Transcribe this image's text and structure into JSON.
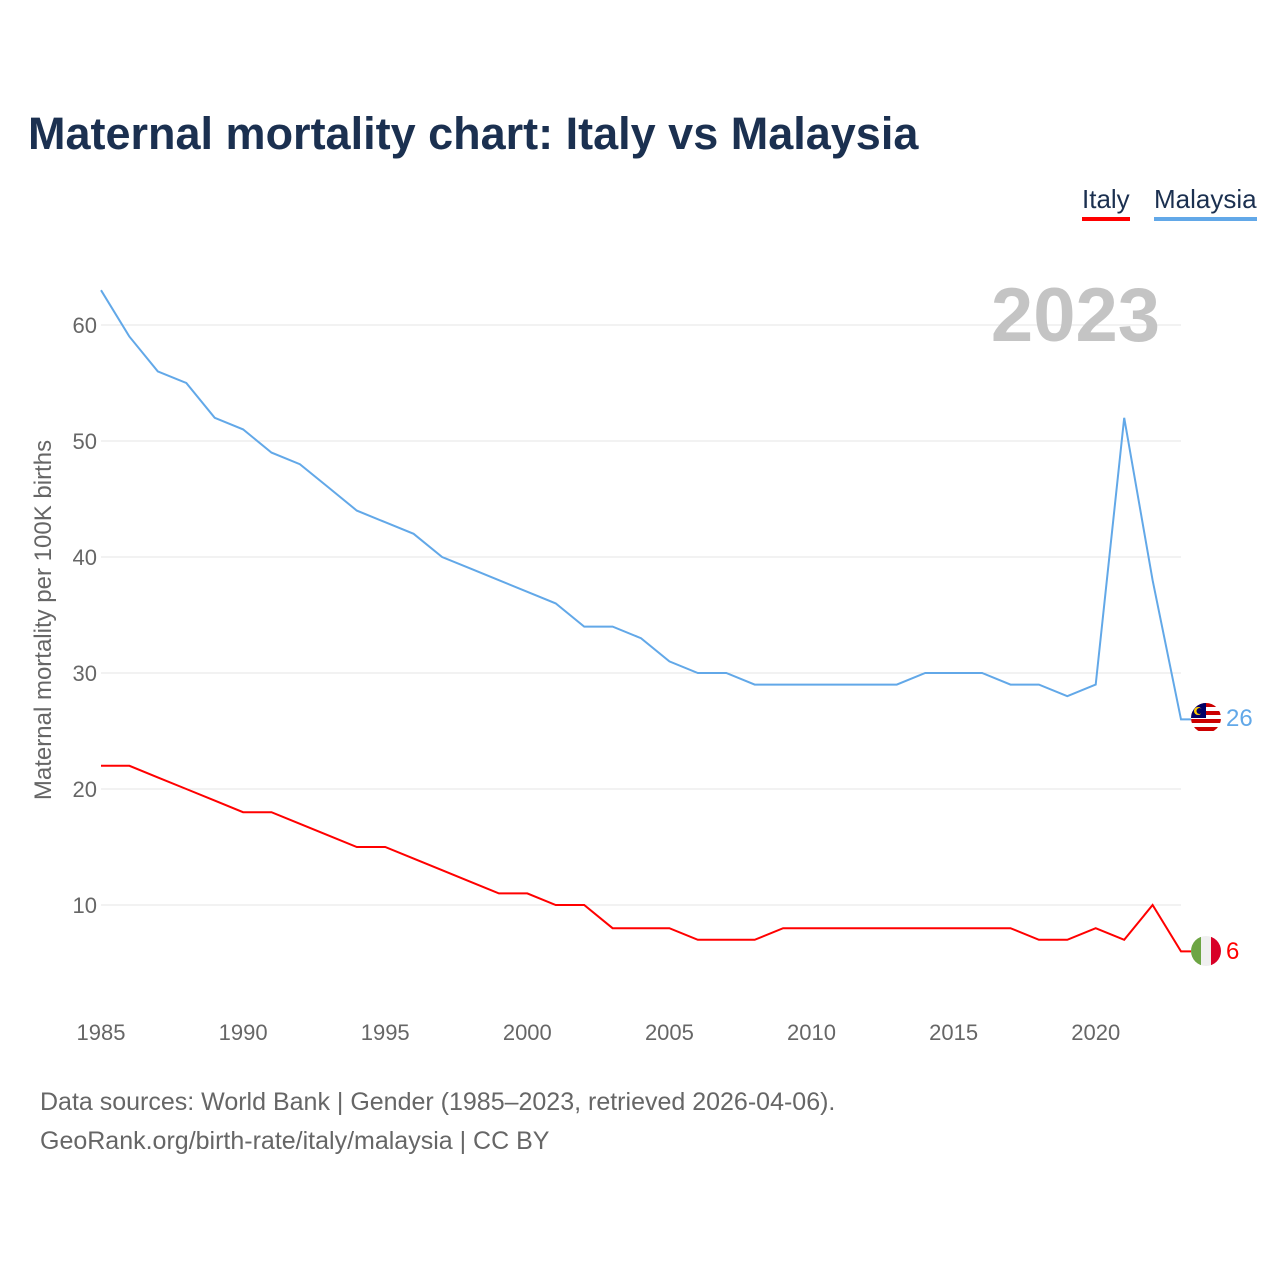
{
  "title": "Maternal mortality chart: Italy vs Malaysia",
  "legend": [
    {
      "label": "Italy",
      "color": "#ff0000"
    },
    {
      "label": "Malaysia",
      "color": "#62a8e8"
    }
  ],
  "year_label": "2023",
  "sources": {
    "line1": "Data sources: World Bank | Gender (1985–2023, retrieved 2026-04-06).",
    "line2": "GeoRank.org/birth-rate/italy/malaysia | CC BY"
  },
  "chart_data": {
    "type": "line",
    "title": "Maternal mortality chart: Italy vs Malaysia",
    "xlabel": "",
    "ylabel": "Maternal mortality per 100K births",
    "xlim": [
      1985,
      2023
    ],
    "ylim": [
      2,
      65
    ],
    "x_ticks": [
      1985,
      1990,
      1995,
      2000,
      2005,
      2010,
      2015,
      2020
    ],
    "y_ticks": [
      10,
      20,
      30,
      40,
      50,
      60
    ],
    "grid": true,
    "legend_position": "top-right",
    "x": [
      1985,
      1986,
      1987,
      1988,
      1989,
      1990,
      1991,
      1992,
      1993,
      1994,
      1995,
      1996,
      1997,
      1998,
      1999,
      2000,
      2001,
      2002,
      2003,
      2004,
      2005,
      2006,
      2007,
      2008,
      2009,
      2010,
      2011,
      2012,
      2013,
      2014,
      2015,
      2016,
      2017,
      2018,
      2019,
      2020,
      2021,
      2022,
      2023
    ],
    "series": [
      {
        "name": "Italy",
        "color": "#ff0000",
        "end_label": "6",
        "values": [
          22,
          22,
          21,
          20,
          19,
          18,
          18,
          17,
          16,
          15,
          15,
          14,
          13,
          12,
          11,
          11,
          10,
          10,
          8,
          8,
          8,
          7,
          7,
          7,
          8,
          8,
          8,
          8,
          8,
          8,
          8,
          8,
          8,
          7,
          7,
          8,
          7,
          10,
          6
        ]
      },
      {
        "name": "Malaysia",
        "color": "#62a8e8",
        "end_label": "26",
        "values": [
          63,
          59,
          56,
          55,
          52,
          51,
          49,
          48,
          46,
          44,
          43,
          42,
          40,
          39,
          38,
          37,
          36,
          34,
          34,
          33,
          31,
          30,
          30,
          29,
          29,
          29,
          29,
          29,
          29,
          30,
          30,
          30,
          29,
          29,
          28,
          29,
          52,
          38,
          26
        ]
      }
    ]
  }
}
